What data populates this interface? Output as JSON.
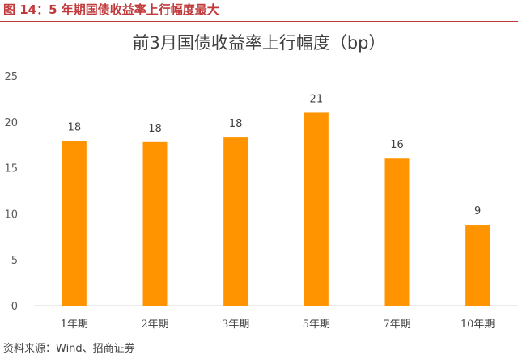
{
  "figure": {
    "title": "图 14：5 年期国债收益率上行幅度最大",
    "source": "资料来源：Wind、招商证券"
  },
  "colors": {
    "accent": "#c0393b",
    "bar": "#ff9400",
    "axis_text": "#595959"
  },
  "chart_data": {
    "type": "bar",
    "title": "前3月国债收益率上行幅度（bp）",
    "categories": [
      "1年期",
      "2年期",
      "3年期",
      "5年期",
      "7年期",
      "10年期"
    ],
    "values": [
      17.9,
      17.8,
      18.3,
      21.0,
      16.0,
      8.8
    ],
    "data_labels": [
      "18",
      "18",
      "18",
      "21",
      "16",
      "9"
    ],
    "yticks": [
      "0",
      "5",
      "10",
      "15",
      "20",
      "25"
    ],
    "ylim": [
      0,
      25
    ],
    "grid": false,
    "legend": "none"
  }
}
